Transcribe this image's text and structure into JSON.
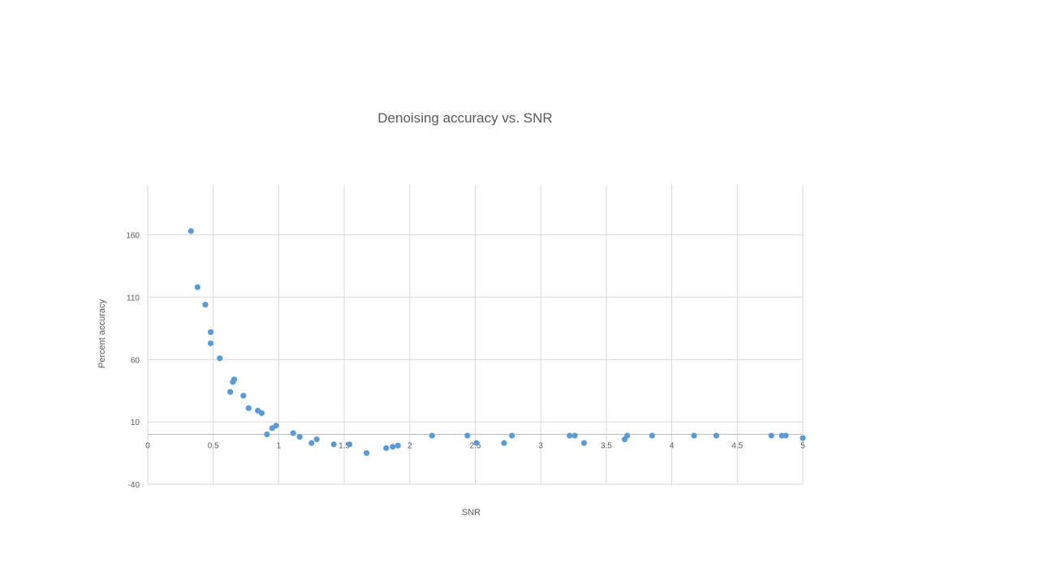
{
  "chart_data": {
    "type": "scatter",
    "title": "Denoising accuracy vs. SNR",
    "xlabel": "SNR",
    "ylabel": "Percent accuracy",
    "xlim": [
      0,
      5
    ],
    "ylim": [
      -40,
      200
    ],
    "x_ticks": [
      0,
      0.5,
      1,
      1.5,
      2,
      2.5,
      3,
      3.5,
      4,
      4.5,
      5
    ],
    "x_tick_labels": [
      "0",
      "0.5",
      "1",
      "1.5",
      "2",
      "2.5",
      "3",
      "3.5",
      "4",
      "4.5",
      "5"
    ],
    "y_ticks": [
      -40,
      10,
      60,
      110,
      160
    ],
    "y_tick_labels": [
      "-40",
      "10",
      "60",
      "110",
      "160"
    ],
    "x_axis_crosses_at": 0,
    "grid": true,
    "legend": "none",
    "marker_color": "#5b9bd5",
    "gridline_color": "#d9d9d9",
    "series": [
      {
        "points": [
          [
            0.33,
            163
          ],
          [
            0.38,
            118
          ],
          [
            0.44,
            104
          ],
          [
            0.48,
            82
          ],
          [
            0.48,
            73
          ],
          [
            0.55,
            61
          ],
          [
            0.63,
            34
          ],
          [
            0.65,
            42
          ],
          [
            0.66,
            44
          ],
          [
            0.73,
            31
          ],
          [
            0.77,
            21
          ],
          [
            0.84,
            19
          ],
          [
            0.87,
            17
          ],
          [
            0.91,
            0
          ],
          [
            0.95,
            5
          ],
          [
            0.98,
            7
          ],
          [
            1.11,
            1
          ],
          [
            1.16,
            -2
          ],
          [
            1.25,
            -7
          ],
          [
            1.29,
            -4
          ],
          [
            1.42,
            -8
          ],
          [
            1.54,
            -8
          ],
          [
            1.67,
            -15
          ],
          [
            1.82,
            -11
          ],
          [
            1.87,
            -10
          ],
          [
            1.91,
            -9
          ],
          [
            2.17,
            -1
          ],
          [
            2.44,
            -1
          ],
          [
            2.51,
            -7
          ],
          [
            2.72,
            -7
          ],
          [
            2.78,
            -1
          ],
          [
            3.22,
            -1
          ],
          [
            3.26,
            -1
          ],
          [
            3.33,
            -7
          ],
          [
            3.64,
            -4
          ],
          [
            3.66,
            -1
          ],
          [
            3.85,
            -1
          ],
          [
            4.17,
            -1
          ],
          [
            4.34,
            -1
          ],
          [
            4.76,
            -1
          ],
          [
            4.84,
            -1
          ],
          [
            4.87,
            -1
          ],
          [
            5.0,
            -3
          ]
        ]
      }
    ]
  }
}
